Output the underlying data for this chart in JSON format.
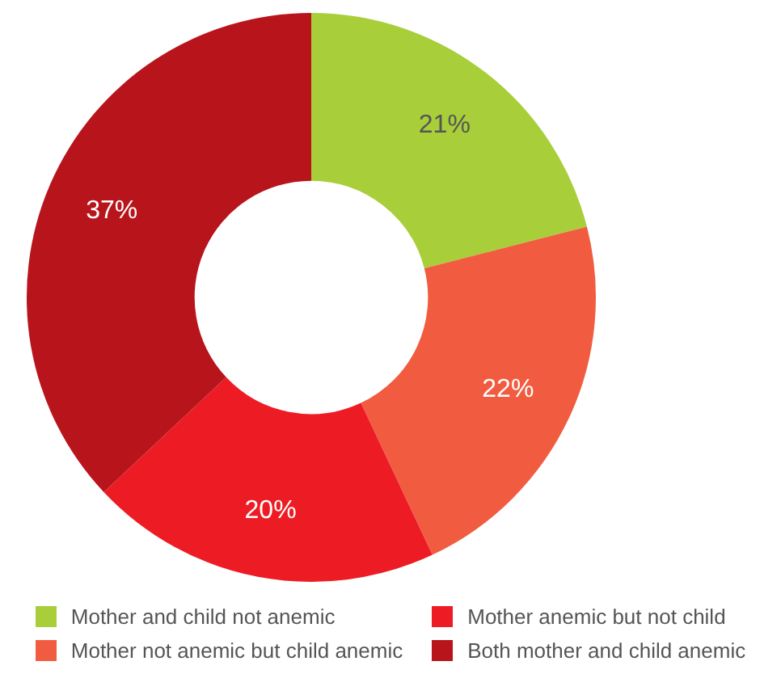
{
  "chart_data": {
    "type": "donut",
    "categories": [
      "Mother and child not anemic",
      "Mother not anemic but child anemic",
      "Mother anemic but not child",
      "Both mother and child anemic"
    ],
    "values": [
      21,
      22,
      20,
      37
    ],
    "colors": [
      "#a8ce3a",
      "#f15c40",
      "#ed1c24",
      "#b8141c"
    ],
    "value_labels": [
      "21%",
      "22%",
      "20%",
      "37%"
    ],
    "legend": "bottom"
  }
}
